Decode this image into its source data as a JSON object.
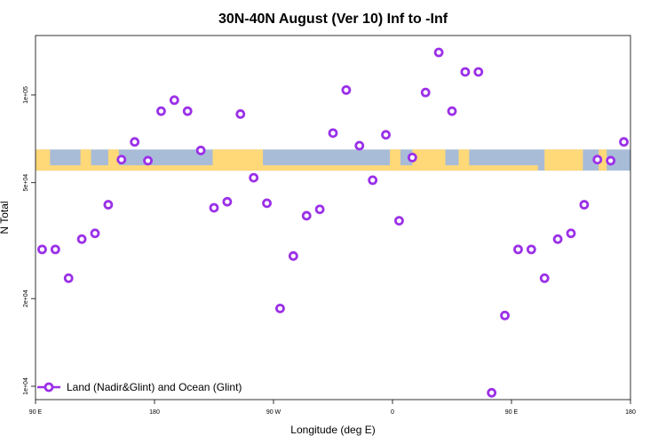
{
  "chart_data": {
    "type": "scatter",
    "title": "30N-40N August (Ver 10)   Inf to -Inf",
    "xlabel": "Longitude (deg E)",
    "ylabel": "N Total",
    "x_scale": "linear",
    "y_scale": "log",
    "xlim": [
      90,
      540
    ],
    "ylim": [
      9000,
      160000
    ],
    "x_ticks": [
      {
        "value": 90,
        "label": "90 E"
      },
      {
        "value": 180,
        "label": "180"
      },
      {
        "value": 270,
        "label": "90 W"
      },
      {
        "value": 360,
        "label": "0"
      },
      {
        "value": 450,
        "label": "90 E"
      },
      {
        "value": 540,
        "label": "180"
      }
    ],
    "y_ticks": [
      {
        "value": 10000,
        "label": "1e+04"
      },
      {
        "value": 20000,
        "label": "2e+04"
      },
      {
        "value": 50000,
        "label": "5e+04"
      },
      {
        "value": 100000,
        "label": "1e+05"
      }
    ],
    "grid": false,
    "legend": {
      "position": "bottom-left",
      "entries": [
        "Land (Nadir&Glint) and Ocean (Glint)"
      ]
    },
    "background_map_band": {
      "lat_range": "30N-40N",
      "land_color": "#FFD878",
      "ocean_color": "#A8BCD8",
      "y_range": [
        55000,
        65000
      ]
    },
    "series": [
      {
        "name": "Land (Nadir&Glint) and Ocean (Glint)",
        "color": "#9B30E8",
        "points": [
          [
            95,
            29500
          ],
          [
            105,
            29500
          ],
          [
            115,
            23500
          ],
          [
            125,
            32000
          ],
          [
            135,
            33500
          ],
          [
            145,
            42000
          ],
          [
            155,
            60000
          ],
          [
            165,
            69000
          ],
          [
            175,
            59500
          ],
          [
            185,
            88000
          ],
          [
            195,
            96000
          ],
          [
            205,
            88000
          ],
          [
            215,
            64500
          ],
          [
            225,
            41000
          ],
          [
            235,
            43000
          ],
          [
            245,
            86000
          ],
          [
            255,
            52000
          ],
          [
            265,
            42500
          ],
          [
            275,
            18500
          ],
          [
            285,
            28000
          ],
          [
            295,
            38500
          ],
          [
            305,
            40500
          ],
          [
            315,
            74000
          ],
          [
            325,
            104000
          ],
          [
            335,
            67000
          ],
          [
            345,
            51000
          ],
          [
            355,
            73000
          ],
          [
            365,
            37000
          ],
          [
            375,
            61000
          ],
          [
            385,
            102000
          ],
          [
            395,
            140000
          ],
          [
            405,
            88000
          ],
          [
            415,
            120000
          ],
          [
            425,
            120000
          ],
          [
            435,
            9500
          ],
          [
            445,
            17500
          ],
          [
            455,
            29500
          ],
          [
            465,
            29500
          ],
          [
            475,
            23500
          ],
          [
            485,
            32000
          ],
          [
            495,
            33500
          ],
          [
            505,
            42000
          ],
          [
            515,
            60000
          ],
          [
            525,
            59500
          ],
          [
            535,
            69000
          ]
        ]
      }
    ]
  }
}
